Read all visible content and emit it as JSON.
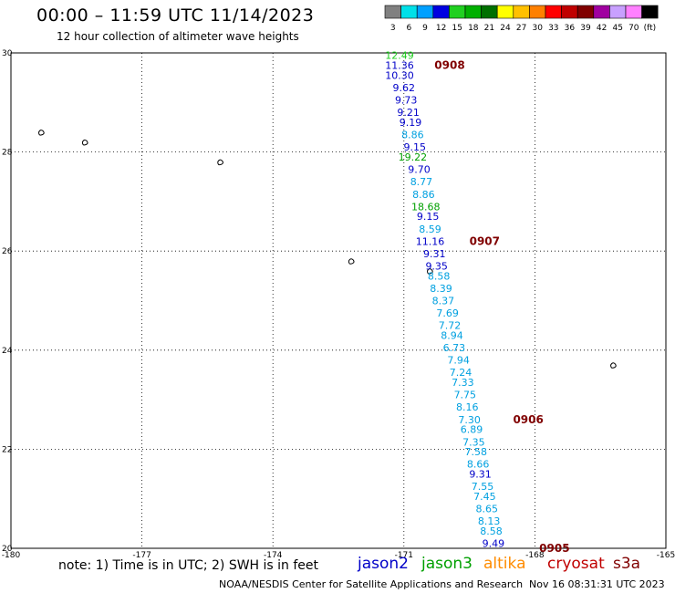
{
  "header": {
    "title": "00:00 – 11:59 UTC 11/14/2023",
    "subtitle": "12 hour collection of altimeter wave heights"
  },
  "colorbar": {
    "swatches": [
      {
        "label": "3",
        "color": "#808080"
      },
      {
        "label": "6",
        "color": "#00e0e8"
      },
      {
        "label": "9",
        "color": "#00a0ff"
      },
      {
        "label": "12",
        "color": "#0000e0"
      },
      {
        "label": "15",
        "color": "#20d020"
      },
      {
        "label": "18",
        "color": "#00b000"
      },
      {
        "label": "21",
        "color": "#007000"
      },
      {
        "label": "24",
        "color": "#ffff00"
      },
      {
        "label": "27",
        "color": "#ffc000"
      },
      {
        "label": "30",
        "color": "#ff8000"
      },
      {
        "label": "33",
        "color": "#ff0000"
      },
      {
        "label": "36",
        "color": "#c00000"
      },
      {
        "label": "39",
        "color": "#800000"
      },
      {
        "label": "42",
        "color": "#a000a0"
      },
      {
        "label": "45",
        "color": "#c8a0ff"
      },
      {
        "label": "70",
        "color": "#ff80ff"
      },
      {
        "label": "(ft)",
        "color": "#000000"
      }
    ]
  },
  "axes": {
    "lon_ticks": [
      "-180",
      "-177",
      "-174",
      "-171",
      "-168",
      "-165"
    ],
    "lat_ticks": [
      "20",
      "22",
      "24",
      "26",
      "28",
      "30"
    ],
    "lon_range": [
      -180,
      -165
    ],
    "lat_range": [
      20,
      30
    ],
    "grid": "dotted"
  },
  "colors": {
    "jason2": "#0000c8",
    "jason3": "#00a000",
    "altika": "#ff8c00",
    "cryosat": "#c00000",
    "s3a": "#800000",
    "sat_light": "#00a0e0",
    "pass_label": "#800000",
    "land": "#000000"
  },
  "passes": [
    {
      "label": "0908",
      "lon": -170.3,
      "lat": 29.75
    },
    {
      "label": "0907",
      "lon": -169.5,
      "lat": 26.2
    },
    {
      "label": "0906",
      "lon": -168.5,
      "lat": 22.6
    },
    {
      "label": "0905",
      "lon": -167.9,
      "lat": 20.0
    }
  ],
  "swh_points": [
    {
      "value": "12.49",
      "lon": -171.1,
      "lat": 29.95,
      "color": "#20d020"
    },
    {
      "value": "11.36",
      "lon": -171.1,
      "lat": 29.75,
      "color": "#0000c8"
    },
    {
      "value": "10.30",
      "lon": -171.1,
      "lat": 29.55,
      "color": "#0000c8"
    },
    {
      "value": "9.62",
      "lon": -171.0,
      "lat": 29.3,
      "color": "#0000c8"
    },
    {
      "value": "9.73",
      "lon": -170.95,
      "lat": 29.05,
      "color": "#0000c8"
    },
    {
      "value": "9.21",
      "lon": -170.9,
      "lat": 28.8,
      "color": "#0000c8"
    },
    {
      "value": "9.19",
      "lon": -170.85,
      "lat": 28.6,
      "color": "#0000c8"
    },
    {
      "value": "8.86",
      "lon": -170.8,
      "lat": 28.35,
      "color": "#00a0e0"
    },
    {
      "value": "9.15",
      "lon": -170.75,
      "lat": 28.1,
      "color": "#0000c8"
    },
    {
      "value": "19.22",
      "lon": -170.8,
      "lat": 27.9,
      "color": "#00a000"
    },
    {
      "value": "9.70",
      "lon": -170.65,
      "lat": 27.65,
      "color": "#0000c8"
    },
    {
      "value": "8.77",
      "lon": -170.6,
      "lat": 27.4,
      "color": "#00a0e0"
    },
    {
      "value": "8.86",
      "lon": -170.55,
      "lat": 27.15,
      "color": "#00a0e0"
    },
    {
      "value": "18.68",
      "lon": -170.5,
      "lat": 26.9,
      "color": "#00a000"
    },
    {
      "value": "9.15",
      "lon": -170.45,
      "lat": 26.7,
      "color": "#0000c8"
    },
    {
      "value": "8.59",
      "lon": -170.4,
      "lat": 26.45,
      "color": "#00a0e0"
    },
    {
      "value": "11.16",
      "lon": -170.4,
      "lat": 26.2,
      "color": "#0000c8"
    },
    {
      "value": "9.31",
      "lon": -170.3,
      "lat": 25.95,
      "color": "#0000c8"
    },
    {
      "value": "9.35",
      "lon": -170.25,
      "lat": 25.7,
      "color": "#0000c8"
    },
    {
      "value": "8.58",
      "lon": -170.2,
      "lat": 25.5,
      "color": "#00a0e0"
    },
    {
      "value": "8.39",
      "lon": -170.15,
      "lat": 25.25,
      "color": "#00a0e0"
    },
    {
      "value": "8.37",
      "lon": -170.1,
      "lat": 25.0,
      "color": "#00a0e0"
    },
    {
      "value": "7.69",
      "lon": -170.0,
      "lat": 24.75,
      "color": "#00a0e0"
    },
    {
      "value": "7.72",
      "lon": -169.95,
      "lat": 24.5,
      "color": "#00a0e0"
    },
    {
      "value": "8.94",
      "lon": -169.9,
      "lat": 24.3,
      "color": "#00a0e0"
    },
    {
      "value": "6.73",
      "lon": -169.85,
      "lat": 24.05,
      "color": "#00a0e0"
    },
    {
      "value": "7.94",
      "lon": -169.75,
      "lat": 23.8,
      "color": "#00a0e0"
    },
    {
      "value": "7.24",
      "lon": -169.7,
      "lat": 23.55,
      "color": "#00a0e0"
    },
    {
      "value": "7.33",
      "lon": -169.65,
      "lat": 23.35,
      "color": "#00a0e0"
    },
    {
      "value": "7.75",
      "lon": -169.6,
      "lat": 23.1,
      "color": "#00a0e0"
    },
    {
      "value": "8.16",
      "lon": -169.55,
      "lat": 22.85,
      "color": "#00a0e0"
    },
    {
      "value": "7.30",
      "lon": -169.5,
      "lat": 22.6,
      "color": "#00a0e0"
    },
    {
      "value": "6.89",
      "lon": -169.45,
      "lat": 22.4,
      "color": "#00a0e0"
    },
    {
      "value": "7.35",
      "lon": -169.4,
      "lat": 22.15,
      "color": "#00a0e0"
    },
    {
      "value": "7.58",
      "lon": -169.35,
      "lat": 21.95,
      "color": "#00a0e0"
    },
    {
      "value": "8.66",
      "lon": -169.3,
      "lat": 21.7,
      "color": "#00a0e0"
    },
    {
      "value": "9.31",
      "lon": -169.25,
      "lat": 21.5,
      "color": "#0000c8"
    },
    {
      "value": "7.55",
      "lon": -169.2,
      "lat": 21.25,
      "color": "#00a0e0"
    },
    {
      "value": "7.45",
      "lon": -169.15,
      "lat": 21.05,
      "color": "#00a0e0"
    },
    {
      "value": "8.65",
      "lon": -169.1,
      "lat": 20.8,
      "color": "#00a0e0"
    },
    {
      "value": "8.13",
      "lon": -169.05,
      "lat": 20.55,
      "color": "#00a0e0"
    },
    {
      "value": "8.58",
      "lon": -169.0,
      "lat": 20.35,
      "color": "#00a0e0"
    },
    {
      "value": "9.49",
      "lon": -168.95,
      "lat": 20.1,
      "color": "#0000c8"
    }
  ],
  "islands": [
    {
      "lon": -179.3,
      "lat": 28.4
    },
    {
      "lon": -178.3,
      "lat": 28.2
    },
    {
      "lon": -175.2,
      "lat": 27.8
    },
    {
      "lon": -172.2,
      "lat": 25.8
    },
    {
      "lon": -170.4,
      "lat": 25.6
    },
    {
      "lon": -166.2,
      "lat": 23.7
    }
  ],
  "legend": {
    "note": "note:  1) Time is in UTC;  2) SWH is in feet",
    "satellites": [
      "jason2",
      "jason3",
      "altika",
      "cryosat",
      "s3a"
    ]
  },
  "footer": {
    "credit": "NOAA/NESDIS Center for Satellite Applications and Research",
    "timestamp": "Nov 16 08:31:31 UTC 2023"
  }
}
